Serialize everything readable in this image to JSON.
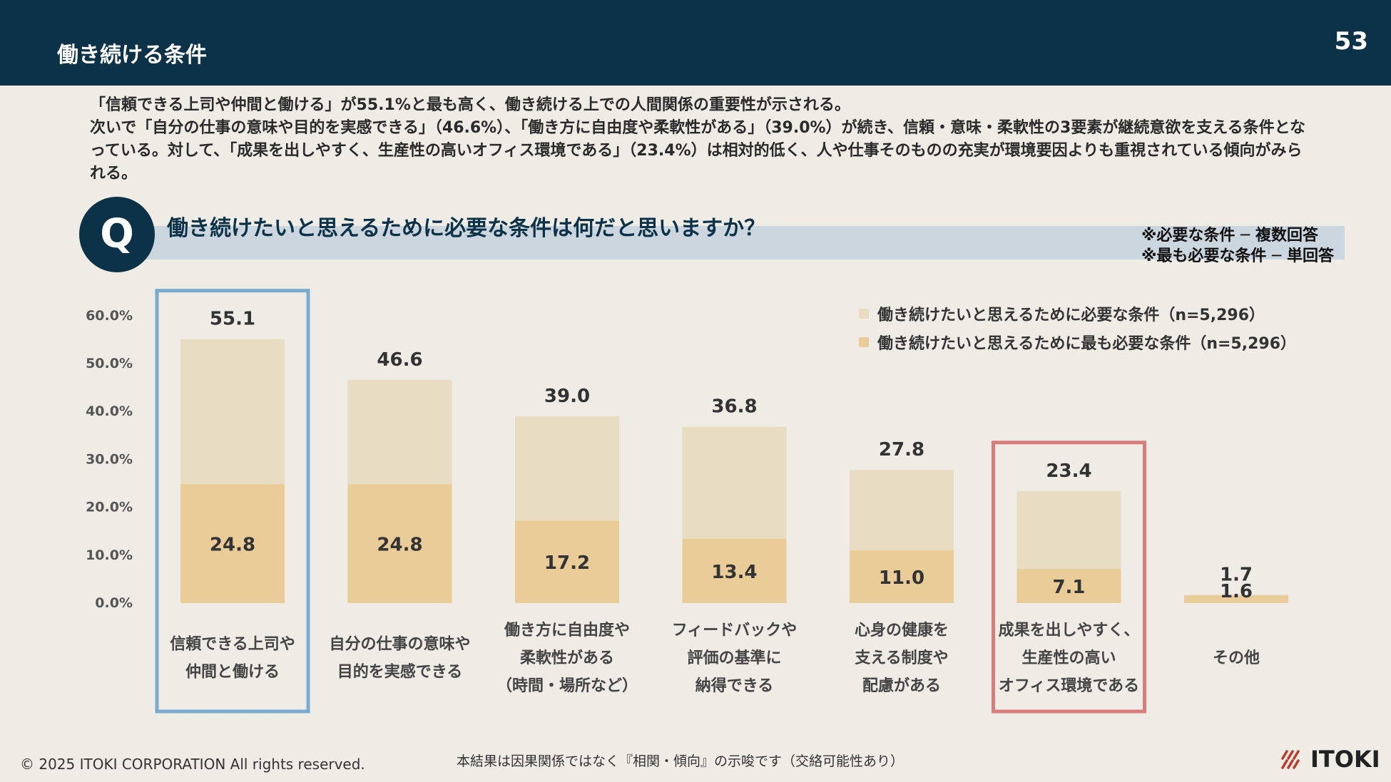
{
  "header": {
    "title": "働き続ける条件",
    "page_number": "53"
  },
  "summary": [
    "「信頼できる上司や仲間と働ける」が55.1%と最も高く、働き続ける上での人間関係の重要性が示される。",
    "次いで「自分の仕事の意味や目的を実感できる」（46.6%）、「働き方に自由度や柔軟性がある」（39.0%）が続き、信頼・意味・柔軟性の3要素が継続意欲を支える条件となっている。対して、「成果を出しやすく、生産性の高いオフィス環境である」（23.4%）は相対的低く、人や仕事そのものの充実が環境要因よりも重視されている傾向がみられる。"
  ],
  "question": {
    "mark": "Q",
    "text": "働き続けたいと思えるために必要な条件は何だと思いますか？"
  },
  "notes": [
    "※必要な条件 ─ 複数回答",
    "※最も必要な条件 ─ 単回答"
  ],
  "chart_data": {
    "type": "bar",
    "ylim": [
      0,
      60
    ],
    "yticks": [
      "60.0%",
      "50.0%",
      "40.0%",
      "30.0%",
      "20.0%",
      "10.0%",
      "0.0%"
    ],
    "tick_values": [
      60,
      50,
      40,
      30,
      20,
      10,
      0
    ],
    "categories": [
      [
        "信頼できる上司や",
        "仲間と働ける"
      ],
      [
        "自分の仕事の意味や",
        "目的を実感できる"
      ],
      [
        "働き方に自由度や",
        "柔軟性がある",
        "（時間・場所など）"
      ],
      [
        "フィードバックや",
        "評価の基準に",
        "納得できる"
      ],
      [
        "心身の健康を",
        "支える制度や",
        "配慮がある"
      ],
      [
        "成果を出しやすく、",
        "生産性の高い",
        "オフィス環境である"
      ],
      [
        "その他"
      ]
    ],
    "series": [
      {
        "name": "働き続けたいと思えるために必要な条件（n=5,296）",
        "color": "#e8dcc2",
        "values": [
          55.1,
          46.6,
          39.0,
          36.8,
          27.8,
          23.4,
          1.7
        ],
        "labels": [
          "55.1",
          "46.6",
          "39.0",
          "36.8",
          "27.8",
          "23.4",
          "1.7"
        ]
      },
      {
        "name": "働き続けたいと思えるために最も必要な条件（n=5,296）",
        "color": "#e9cc98",
        "values": [
          24.8,
          24.8,
          17.2,
          13.4,
          11.0,
          7.1,
          1.6
        ],
        "labels": [
          "24.8",
          "24.8",
          "17.2",
          "13.4",
          "11.0",
          "7.1",
          "1.6"
        ]
      }
    ],
    "highlights": [
      {
        "index": 0,
        "color": "#7aaad0"
      },
      {
        "index": 5,
        "color": "#d97c7c"
      }
    ],
    "legend_position": "top-right",
    "grid": false
  },
  "footer": {
    "copyright": "© 2025 ITOKI CORPORATION All rights reserved.",
    "note": "本結果は因果関係ではなく『相関・傾向』の示唆です（交絡可能性あり）",
    "logo_text": "ITOKI",
    "logo_color": "#c0392b"
  }
}
